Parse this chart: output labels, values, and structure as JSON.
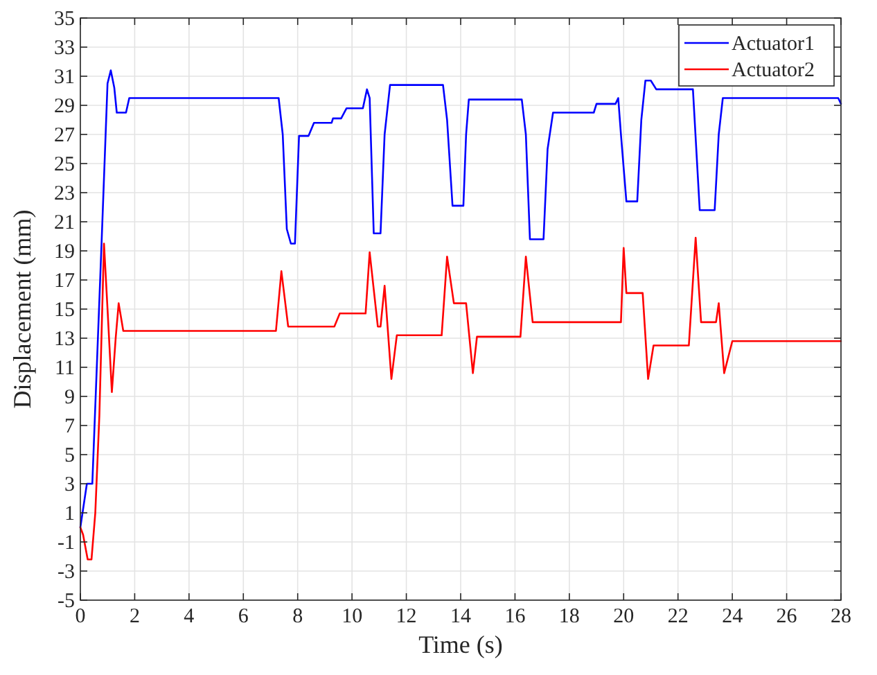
{
  "chart_data": {
    "type": "line",
    "xlabel": "Time (s)",
    "ylabel": "Displacement (mm)",
    "xlim": [
      0,
      28
    ],
    "xticks": [
      0,
      2,
      4,
      6,
      8,
      10,
      12,
      14,
      16,
      18,
      20,
      22,
      24,
      26,
      28
    ],
    "ylim": [
      -5,
      35
    ],
    "yticks": [
      -5,
      -3,
      -1,
      1,
      3,
      5,
      7,
      9,
      11,
      13,
      15,
      17,
      19,
      21,
      23,
      25,
      27,
      29,
      31,
      33,
      35
    ],
    "grid": true,
    "legend": "top right",
    "line_style": "solid",
    "marker": "none",
    "series": [
      {
        "name": "Actuator1",
        "color": "#0000ff",
        "x": [
          0,
          0.24,
          0.44,
          0.78,
          1.0,
          1.12,
          1.25,
          1.34,
          1.68,
          1.8,
          7.3,
          7.45,
          7.6,
          7.75,
          7.9,
          8.05,
          8.4,
          8.6,
          9.25,
          9.3,
          9.6,
          9.8,
          10.4,
          10.55,
          10.65,
          10.8,
          11.05,
          11.2,
          11.4,
          13.35,
          13.5,
          13.7,
          14.1,
          14.2,
          14.3,
          16.25,
          16.4,
          16.55,
          17.05,
          17.2,
          17.4,
          18.9,
          19.0,
          19.7,
          19.8,
          19.9,
          20.1,
          20.5,
          20.65,
          20.8,
          21.0,
          21.2,
          22.55,
          22.8,
          23.35,
          23.5,
          23.65,
          27.9,
          28
        ],
        "values": [
          0,
          3,
          3,
          19.5,
          30.5,
          31.4,
          30.2,
          28.5,
          28.5,
          29.5,
          29.5,
          27,
          20.5,
          19.5,
          19.5,
          26.9,
          26.9,
          27.8,
          27.8,
          28.1,
          28.1,
          28.8,
          28.8,
          30.1,
          29.5,
          20.2,
          20.2,
          27,
          30.4,
          30.4,
          28,
          22.1,
          22.1,
          27,
          29.4,
          29.4,
          27,
          19.8,
          19.8,
          26,
          28.5,
          28.5,
          29.1,
          29.1,
          29.5,
          27,
          22.4,
          22.4,
          28,
          30.7,
          30.7,
          30.1,
          30.1,
          21.8,
          21.8,
          27,
          29.5,
          29.5,
          29.1
        ]
      },
      {
        "name": "Actuator2",
        "color": "#ff0000",
        "x": [
          0,
          0.1,
          0.27,
          0.41,
          0.55,
          0.7,
          0.87,
          1.0,
          1.16,
          1.3,
          1.41,
          1.58,
          7.2,
          7.4,
          7.65,
          9.35,
          9.55,
          10.5,
          10.65,
          10.95,
          11.05,
          11.2,
          11.45,
          11.65,
          13.3,
          13.5,
          13.75,
          14.2,
          14.45,
          14.6,
          16.2,
          16.4,
          16.65,
          19.9,
          20.0,
          20.1,
          20.7,
          20.9,
          21.1,
          22.4,
          22.65,
          22.85,
          23.4,
          23.5,
          23.7,
          24.0,
          28
        ],
        "values": [
          0,
          -0.5,
          -2.2,
          -2.2,
          1,
          7.7,
          19.5,
          15,
          9.3,
          13,
          15.4,
          13.5,
          13.5,
          17.6,
          13.8,
          13.8,
          14.7,
          14.7,
          18.9,
          13.8,
          13.8,
          16.6,
          10.2,
          13.2,
          13.2,
          18.6,
          15.4,
          15.4,
          10.6,
          13.1,
          13.1,
          18.6,
          14.1,
          14.1,
          19.2,
          16.1,
          16.1,
          10.2,
          12.5,
          12.5,
          19.9,
          14.1,
          14.1,
          15.4,
          10.6,
          12.8,
          12.8
        ]
      }
    ]
  }
}
